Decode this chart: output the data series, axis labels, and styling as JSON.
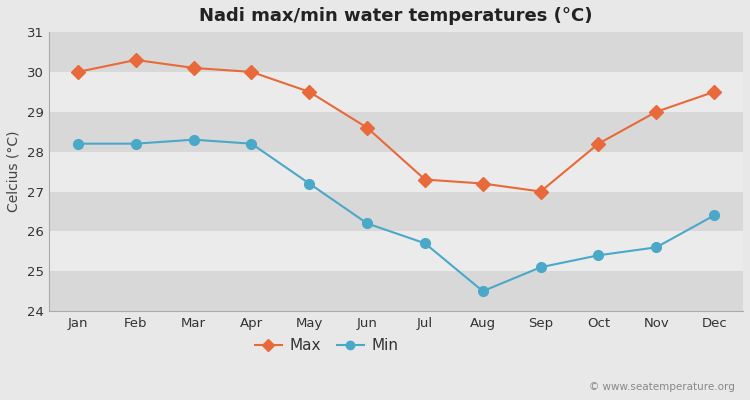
{
  "title": "Nadi max/min water temperatures (°C)",
  "ylabel": "Celcius (°C)",
  "months": [
    "Jan",
    "Feb",
    "Mar",
    "Apr",
    "May",
    "Jun",
    "Jul",
    "Aug",
    "Sep",
    "Oct",
    "Nov",
    "Dec"
  ],
  "max_temps": [
    30.0,
    30.3,
    30.1,
    30.0,
    29.5,
    28.6,
    27.3,
    27.2,
    27.0,
    28.2,
    29.0,
    29.5
  ],
  "min_temps": [
    28.2,
    28.2,
    28.3,
    28.2,
    27.2,
    26.2,
    25.7,
    24.5,
    25.1,
    25.4,
    25.6,
    26.4
  ],
  "max_color": "#e8693a",
  "min_color": "#4aa8c8",
  "bg_color": "#e8e8e8",
  "stripe_light": "#ebebeb",
  "stripe_dark": "#d8d8d8",
  "ylim": [
    24,
    31
  ],
  "yticks": [
    24,
    25,
    26,
    27,
    28,
    29,
    30,
    31
  ],
  "watermark": "© www.seatemperature.org",
  "legend_labels": [
    "Max",
    "Min"
  ],
  "title_fontsize": 13,
  "label_fontsize": 10,
  "tick_fontsize": 9.5,
  "watermark_fontsize": 7.5
}
